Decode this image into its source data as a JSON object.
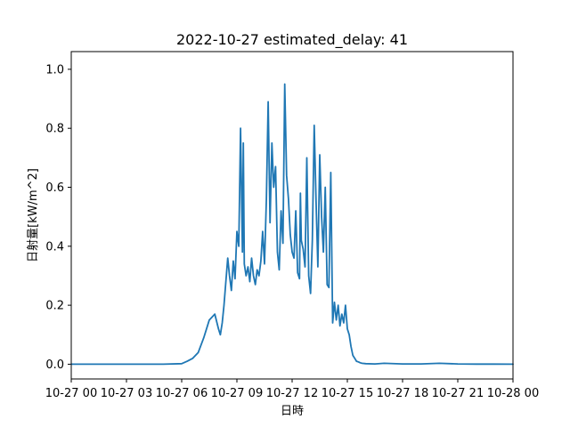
{
  "chart_data": {
    "type": "line",
    "title": "2022-10-27 estimated_delay: 41",
    "xlabel": "日時",
    "ylabel": "日射量[kW/m^2]",
    "xlim": [
      0,
      24
    ],
    "ylim": [
      -0.05,
      1.06
    ],
    "grid": false,
    "x_ticks": [
      {
        "value": 0,
        "label": "10-27 00"
      },
      {
        "value": 3,
        "label": "10-27 03"
      },
      {
        "value": 6,
        "label": "10-27 06"
      },
      {
        "value": 9,
        "label": "10-27 09"
      },
      {
        "value": 12,
        "label": "10-27 12"
      },
      {
        "value": 15,
        "label": "10-27 15"
      },
      {
        "value": 18,
        "label": "10-27 18"
      },
      {
        "value": 21,
        "label": "10-27 21"
      },
      {
        "value": 24,
        "label": "10-28 00"
      }
    ],
    "y_ticks": [
      {
        "value": 0.0,
        "label": "0.0"
      },
      {
        "value": 0.2,
        "label": "0.2"
      },
      {
        "value": 0.4,
        "label": "0.4"
      },
      {
        "value": 0.6,
        "label": "0.6"
      },
      {
        "value": 0.8,
        "label": "0.8"
      },
      {
        "value": 1.0,
        "label": "1.0"
      }
    ],
    "series": [
      {
        "color": "#1f77b4",
        "x": [
          0,
          1,
          2,
          3,
          4,
          5,
          6,
          6.3,
          6.6,
          6.9,
          7.2,
          7.5,
          7.8,
          8.0,
          8.1,
          8.2,
          8.3,
          8.4,
          8.5,
          8.6,
          8.7,
          8.8,
          8.9,
          9.0,
          9.1,
          9.2,
          9.3,
          9.35,
          9.4,
          9.5,
          9.6,
          9.7,
          9.8,
          9.9,
          10.0,
          10.1,
          10.2,
          10.3,
          10.4,
          10.5,
          10.6,
          10.7,
          10.8,
          10.9,
          11.0,
          11.1,
          11.2,
          11.3,
          11.4,
          11.5,
          11.6,
          11.7,
          11.8,
          11.9,
          12.0,
          12.1,
          12.2,
          12.3,
          12.4,
          12.45,
          12.5,
          12.6,
          12.7,
          12.8,
          12.9,
          13.0,
          13.1,
          13.2,
          13.3,
          13.4,
          13.5,
          13.6,
          13.7,
          13.8,
          13.9,
          14.0,
          14.1,
          14.2,
          14.3,
          14.4,
          14.5,
          14.6,
          14.7,
          14.8,
          14.9,
          15.0,
          15.1,
          15.2,
          15.3,
          15.4,
          15.5,
          15.6,
          15.7,
          15.8,
          16.0,
          16.5,
          17,
          18,
          19,
          20,
          21,
          22,
          23,
          24
        ],
        "y": [
          0,
          0,
          0,
          0,
          0,
          0,
          0.002,
          0.01,
          0.02,
          0.04,
          0.09,
          0.15,
          0.17,
          0.12,
          0.1,
          0.14,
          0.2,
          0.28,
          0.36,
          0.3,
          0.25,
          0.35,
          0.29,
          0.45,
          0.4,
          0.8,
          0.38,
          0.75,
          0.34,
          0.3,
          0.33,
          0.28,
          0.36,
          0.3,
          0.27,
          0.32,
          0.3,
          0.35,
          0.45,
          0.34,
          0.56,
          0.89,
          0.48,
          0.75,
          0.6,
          0.67,
          0.38,
          0.32,
          0.52,
          0.41,
          0.95,
          0.64,
          0.56,
          0.44,
          0.38,
          0.36,
          0.52,
          0.31,
          0.29,
          0.58,
          0.42,
          0.39,
          0.33,
          0.7,
          0.3,
          0.24,
          0.42,
          0.81,
          0.55,
          0.33,
          0.71,
          0.5,
          0.38,
          0.6,
          0.27,
          0.26,
          0.65,
          0.14,
          0.21,
          0.15,
          0.2,
          0.13,
          0.17,
          0.14,
          0.2,
          0.12,
          0.1,
          0.06,
          0.03,
          0.02,
          0.01,
          0.008,
          0.005,
          0.003,
          0.002,
          0.001,
          0.003,
          0.001,
          0.001,
          0.003,
          0.001,
          0.0005,
          0.0005,
          0
        ]
      }
    ]
  }
}
